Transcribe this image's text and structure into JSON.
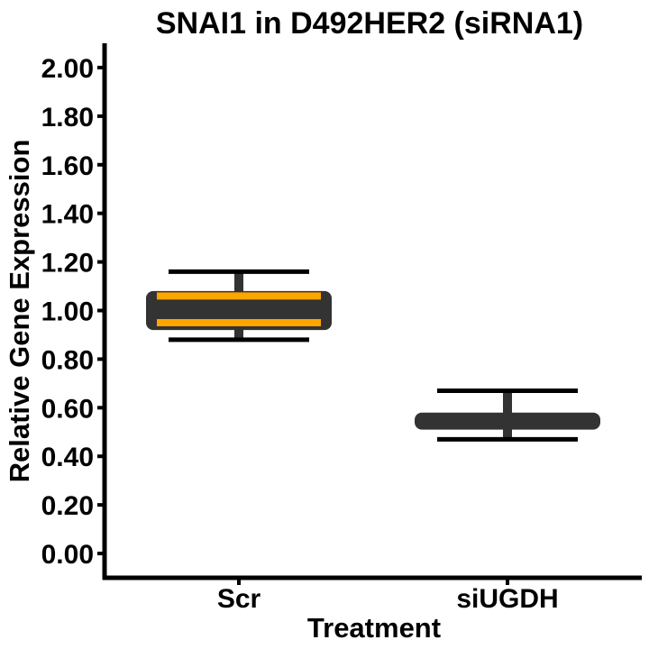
{
  "chart_data": {
    "type": "box",
    "title": "SNAI1 in D492HER2 (siRNA1)",
    "xlabel": "Treatment",
    "ylabel": "Relative Gene Expression",
    "ylim": [
      -0.1,
      2.1
    ],
    "yticks": [
      0.0,
      0.2,
      0.4,
      0.6,
      0.8,
      1.0,
      1.2,
      1.4,
      1.6,
      1.8,
      2.0
    ],
    "ytick_labels": [
      "0.00",
      "0.20",
      "0.40",
      "0.60",
      "0.80",
      "1.00",
      "1.20",
      "1.40",
      "1.60",
      "1.80",
      "2.00"
    ],
    "categories": [
      "Scr",
      "siUGDH"
    ],
    "boxes": [
      {
        "category": "Scr",
        "whisker_low": 0.88,
        "q1": 0.92,
        "median": 0.99,
        "q3": 1.08,
        "whisker_high": 1.16,
        "lines": [
          0.95,
          1.06
        ]
      },
      {
        "category": "siUGDH",
        "whisker_low": 0.47,
        "q1": 0.51,
        "median": 0.55,
        "q3": 0.58,
        "whisker_high": 0.67,
        "lines": []
      }
    ],
    "colors": {
      "box_fill": "#333333",
      "highlight": "#FFA500",
      "axis": "#000000"
    },
    "grid": false,
    "legend": "none"
  }
}
